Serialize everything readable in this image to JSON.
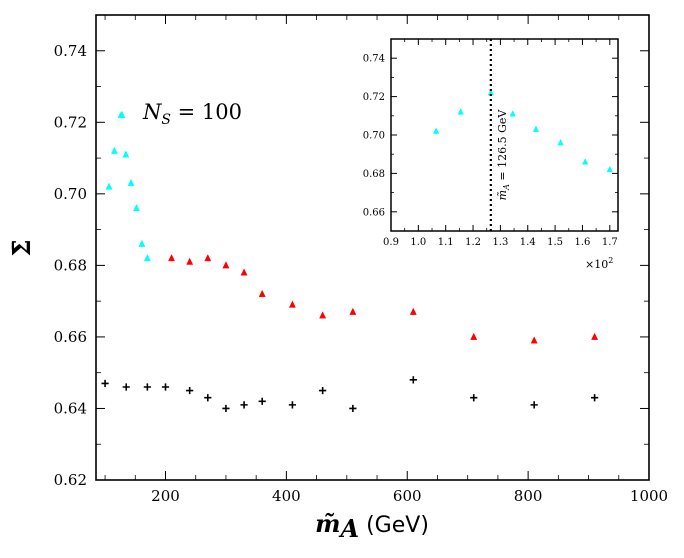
{
  "chart_data": [
    {
      "type": "scatter",
      "title": "",
      "xlabel": "m̃_A (GeV)",
      "xlabel_symbol": "m̃",
      "xlabel_subscript": "A",
      "xlabel_units": " (GeV)",
      "ylabel": "Σ̄",
      "xlim": [
        85,
        1000
      ],
      "ylim": [
        0.62,
        0.75
      ],
      "x_ticks": [
        200,
        400,
        600,
        800,
        1000
      ],
      "x_tick_labels": [
        "200",
        "400",
        "600",
        "800",
        "1000"
      ],
      "y_ticks": [
        0.62,
        0.64,
        0.66,
        0.68,
        0.7,
        0.72,
        0.74
      ],
      "y_tick_labels": [
        "0.62",
        "0.64",
        "0.66",
        "0.68",
        "0.70",
        "0.72",
        "0.74"
      ],
      "grid": false,
      "legend": {
        "position": "upper-left",
        "entries": [
          {
            "marker": "triangle",
            "color": "#00ffff",
            "label_symbol": "N",
            "label_subscript": "S",
            "label_value": " = 100"
          }
        ]
      },
      "series": [
        {
          "name": "cyan-triangles",
          "marker": "triangle",
          "color": "#00ffff",
          "points": [
            [
              106.5,
              0.702
            ],
            [
              115.5,
              0.712
            ],
            [
              126.5,
              0.722
            ],
            [
              134.5,
              0.711
            ],
            [
              143,
              0.703
            ],
            [
              152,
              0.696
            ],
            [
              161,
              0.686
            ],
            [
              170,
              0.682
            ]
          ]
        },
        {
          "name": "red-triangles",
          "marker": "triangle",
          "color": "#ff0000",
          "points": [
            [
              210,
              0.682
            ],
            [
              240,
              0.681
            ],
            [
              270,
              0.682
            ],
            [
              300,
              0.68
            ],
            [
              330,
              0.678
            ],
            [
              360,
              0.672
            ],
            [
              410,
              0.669
            ],
            [
              460,
              0.666
            ],
            [
              510,
              0.667
            ],
            [
              610,
              0.667
            ],
            [
              710,
              0.66
            ],
            [
              810,
              0.659
            ],
            [
              910,
              0.66
            ]
          ]
        },
        {
          "name": "black-plus",
          "marker": "plus",
          "color": "#000000",
          "points": [
            [
              100,
              0.647
            ],
            [
              135,
              0.646
            ],
            [
              170,
              0.646
            ],
            [
              200,
              0.646
            ],
            [
              240,
              0.645
            ],
            [
              270,
              0.643
            ],
            [
              300,
              0.64
            ],
            [
              330,
              0.641
            ],
            [
              360,
              0.642
            ],
            [
              410,
              0.641
            ],
            [
              460,
              0.645
            ],
            [
              510,
              0.64
            ],
            [
              610,
              0.648
            ],
            [
              710,
              0.643
            ],
            [
              810,
              0.641
            ],
            [
              910,
              0.643
            ]
          ]
        }
      ]
    },
    {
      "type": "scatter",
      "title": "",
      "xlabel": "",
      "ylabel": "",
      "x_multiplier_base": "×10",
      "x_multiplier_exponent": "2",
      "xlim": [
        0.9,
        1.73
      ],
      "ylim": [
        0.65,
        0.75
      ],
      "x_ticks": [
        0.9,
        1.0,
        1.1,
        1.2,
        1.3,
        1.4,
        1.5,
        1.6,
        1.7
      ],
      "x_tick_labels": [
        "0.9",
        "1.0",
        "1.1",
        "1.2",
        "1.3",
        "1.4",
        "1.5",
        "1.6",
        "1.7"
      ],
      "y_ticks": [
        0.66,
        0.68,
        0.7,
        0.72,
        0.74
      ],
      "y_tick_labels": [
        "0.66",
        "0.68",
        "0.70",
        "0.72",
        "0.74"
      ],
      "grid": false,
      "vline": {
        "x": 1.265,
        "style": "dotted",
        "color": "#000000",
        "label": "m̃_A = 126.5 GeV",
        "label_symbol": "m̃",
        "label_subscript": "A",
        "label_value": " = 126.5 GeV"
      },
      "series": [
        {
          "name": "cyan-triangles",
          "marker": "triangle",
          "color": "#00ffff",
          "points": [
            [
              1.065,
              0.702
            ],
            [
              1.155,
              0.712
            ],
            [
              1.265,
              0.722
            ],
            [
              1.345,
              0.711
            ],
            [
              1.43,
              0.703
            ],
            [
              1.52,
              0.696
            ],
            [
              1.61,
              0.686
            ],
            [
              1.7,
              0.682
            ]
          ]
        }
      ]
    }
  ]
}
